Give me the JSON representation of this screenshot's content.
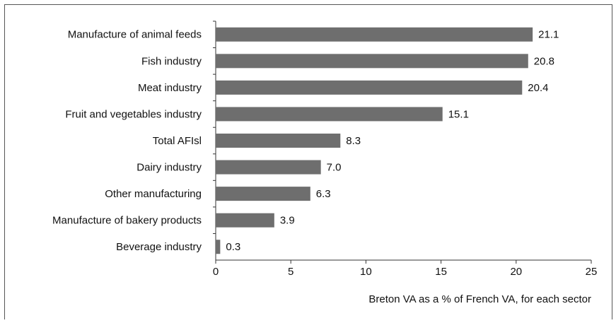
{
  "chart_data": {
    "type": "barh",
    "categories": [
      "Manufacture of animal feeds",
      "Fish industry",
      "Meat industry",
      "Fruit and vegetables industry",
      "Total AFIsl",
      "Dairy industry",
      "Other manufacturing",
      "Manufacture of bakery products",
      "Beverage industry"
    ],
    "values": [
      21.1,
      20.8,
      20.4,
      15.1,
      8.3,
      7.0,
      6.3,
      3.9,
      0.3
    ],
    "value_labels": [
      "21.1",
      "20.8",
      "20.4",
      "15.1",
      "8.3",
      "7.0",
      "6.3",
      "3.9",
      "0.3"
    ],
    "color": "#6e6e6e",
    "xlim": [
      0,
      25
    ],
    "xticks": [
      0,
      5,
      10,
      15,
      20,
      25
    ],
    "xlabel": "Breton VA as a % of French VA, for each sector"
  }
}
